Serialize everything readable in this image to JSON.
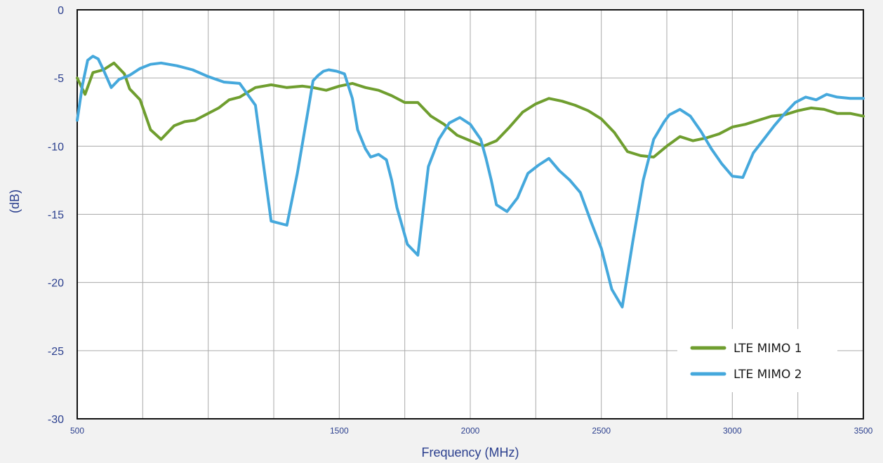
{
  "chart_data": {
    "type": "line",
    "xlabel": "Frequency (MHz)",
    "ylabel": "(dB)",
    "xlim": [
      500,
      3500
    ],
    "ylim": [
      -30,
      0
    ],
    "x_ticks": [
      500,
      1500,
      2000,
      2500,
      3000,
      3500
    ],
    "x_tick_labels": [
      "500",
      "1500",
      "2000",
      "2500",
      "3000",
      "3500"
    ],
    "y_ticks": [
      0,
      -5,
      -10,
      -15,
      -20,
      -25,
      -30
    ],
    "y_tick_labels": [
      "0",
      "-5",
      "-10",
      "-15",
      "-20",
      "-25",
      "-30"
    ],
    "grid": true,
    "legend_position": "bottom-right",
    "series": [
      {
        "name": "LTE MIMO 1",
        "color": "#6f9e2f",
        "x": [
          500,
          530,
          560,
          600,
          640,
          680,
          700,
          740,
          780,
          820,
          870,
          910,
          950,
          990,
          1040,
          1080,
          1120,
          1180,
          1240,
          1300,
          1360,
          1400,
          1450,
          1500,
          1550,
          1600,
          1650,
          1700,
          1750,
          1800,
          1850,
          1900,
          1950,
          2000,
          2050,
          2100,
          2150,
          2200,
          2250,
          2300,
          2350,
          2400,
          2450,
          2500,
          2550,
          2600,
          2650,
          2700,
          2750,
          2800,
          2850,
          2900,
          2950,
          3000,
          3050,
          3100,
          3150,
          3200,
          3250,
          3300,
          3350,
          3400,
          3450,
          3500
        ],
        "values": [
          -5.0,
          -6.2,
          -4.6,
          -4.4,
          -3.9,
          -4.7,
          -5.8,
          -6.6,
          -8.8,
          -9.5,
          -8.5,
          -8.2,
          -8.1,
          -7.7,
          -7.2,
          -6.6,
          -6.4,
          -5.7,
          -5.5,
          -5.7,
          -5.6,
          -5.7,
          -5.9,
          -5.6,
          -5.4,
          -5.7,
          -5.9,
          -6.3,
          -6.8,
          -6.8,
          -7.8,
          -8.4,
          -9.2,
          -9.6,
          -10.0,
          -9.6,
          -8.6,
          -7.5,
          -6.9,
          -6.5,
          -6.7,
          -7.0,
          -7.4,
          -8.0,
          -9.0,
          -10.4,
          -10.7,
          -10.8,
          -10.0,
          -9.3,
          -9.6,
          -9.4,
          -9.1,
          -8.6,
          -8.4,
          -8.1,
          -7.8,
          -7.7,
          -7.4,
          -7.2,
          -7.3,
          -7.6,
          -7.6,
          -7.8
        ]
      },
      {
        "name": "LTE MIMO 2",
        "color": "#45a8dc",
        "x": [
          500,
          520,
          540,
          560,
          580,
          600,
          630,
          660,
          700,
          740,
          780,
          820,
          880,
          940,
          1000,
          1060,
          1120,
          1180,
          1240,
          1300,
          1340,
          1380,
          1400,
          1420,
          1440,
          1460,
          1490,
          1520,
          1550,
          1570,
          1600,
          1620,
          1650,
          1680,
          1700,
          1720,
          1760,
          1800,
          1840,
          1880,
          1920,
          1960,
          2000,
          2040,
          2060,
          2080,
          2100,
          2140,
          2180,
          2220,
          2260,
          2300,
          2340,
          2380,
          2420,
          2460,
          2500,
          2540,
          2580,
          2620,
          2660,
          2700,
          2740,
          2760,
          2780,
          2800,
          2840,
          2880,
          2920,
          2960,
          3000,
          3040,
          3080,
          3120,
          3160,
          3200,
          3240,
          3280,
          3320,
          3360,
          3400,
          3450,
          3500
        ],
        "values": [
          -8.1,
          -5.5,
          -3.7,
          -3.4,
          -3.6,
          -4.4,
          -5.7,
          -5.1,
          -4.8,
          -4.3,
          -4.0,
          -3.9,
          -4.1,
          -4.4,
          -4.9,
          -5.3,
          -5.4,
          -7.0,
          -15.5,
          -15.8,
          -12.0,
          -7.5,
          -5.2,
          -4.8,
          -4.5,
          -4.4,
          -4.5,
          -4.7,
          -6.5,
          -8.8,
          -10.2,
          -10.8,
          -10.6,
          -11.0,
          -12.5,
          -14.5,
          -17.2,
          -18.0,
          -11.5,
          -9.5,
          -8.3,
          -7.9,
          -8.4,
          -9.5,
          -10.9,
          -12.5,
          -14.3,
          -14.8,
          -13.8,
          -12.0,
          -11.4,
          -10.9,
          -11.8,
          -12.5,
          -13.4,
          -15.5,
          -17.5,
          -20.5,
          -21.8,
          -17.0,
          -12.5,
          -9.5,
          -8.2,
          -7.7,
          -7.5,
          -7.3,
          -7.8,
          -8.9,
          -10.2,
          -11.3,
          -12.2,
          -12.3,
          -10.5,
          -9.5,
          -8.5,
          -7.6,
          -6.8,
          -6.4,
          -6.6,
          -6.2,
          -6.4,
          -6.5,
          -6.5
        ]
      }
    ]
  }
}
